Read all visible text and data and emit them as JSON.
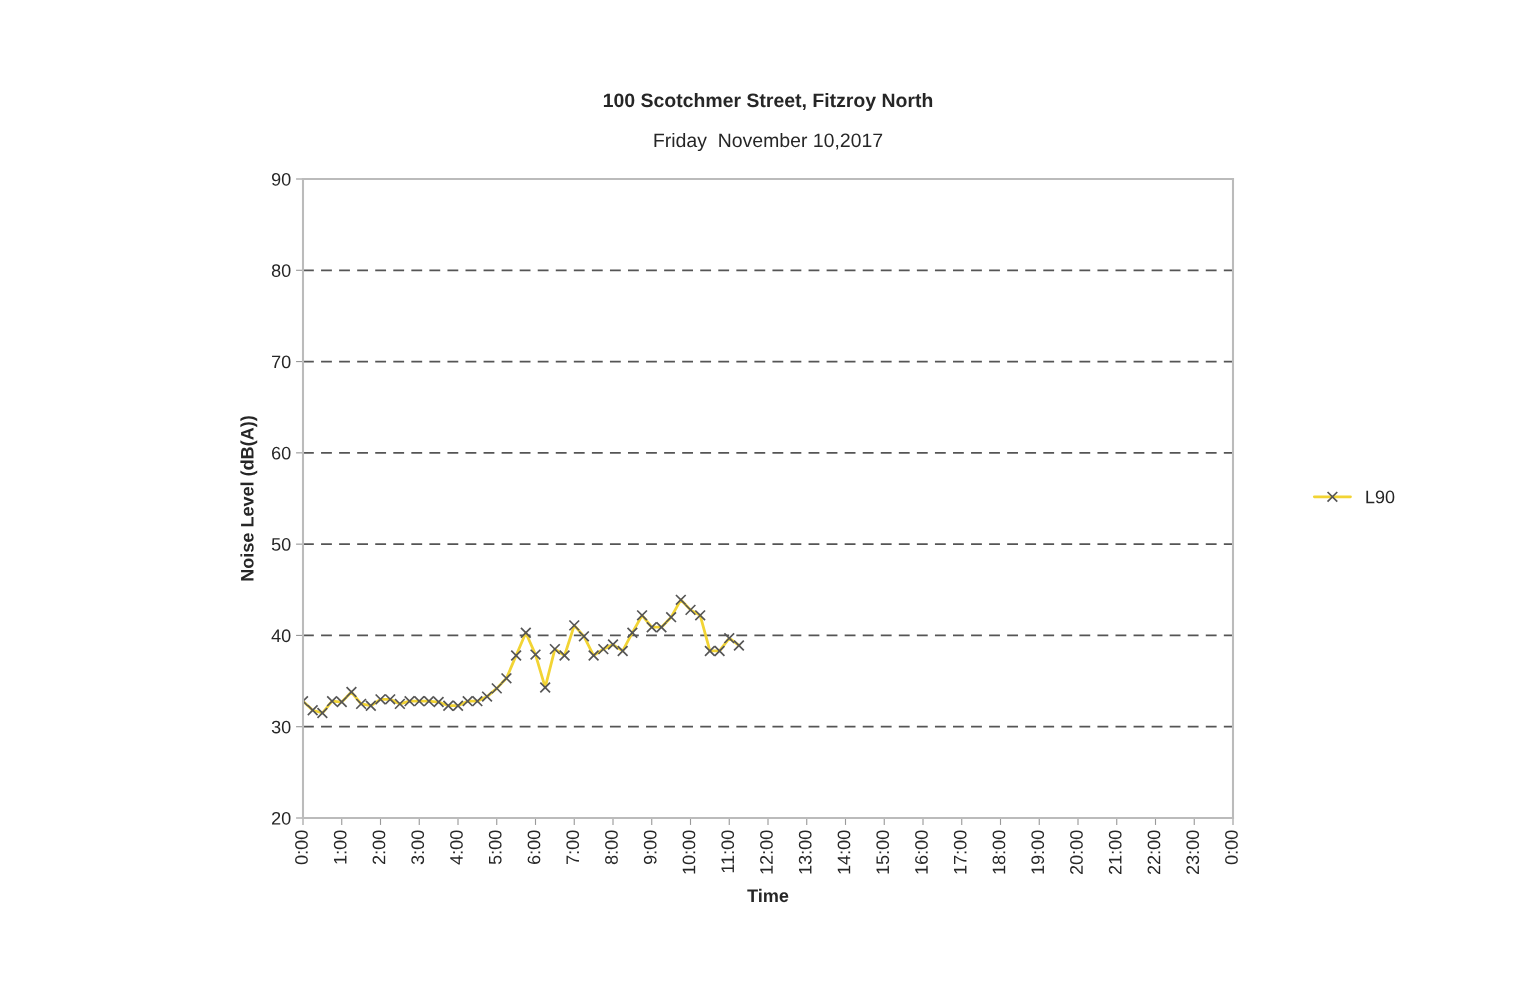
{
  "chart_data": {
    "type": "line",
    "title": "100 Scotchmer Street, Fitzroy North",
    "subtitle": "Friday  November 10,2017",
    "xlabel": "Time",
    "ylabel": "Noise Level (dB(A))",
    "x": [
      0,
      0.25,
      0.5,
      0.75,
      1,
      1.25,
      1.5,
      1.75,
      2,
      2.25,
      2.5,
      2.75,
      3,
      3.25,
      3.5,
      3.75,
      4,
      4.25,
      4.5,
      4.75,
      5,
      5.25,
      5.5,
      5.75,
      6,
      6.25,
      6.5,
      6.75,
      7,
      7.25,
      7.5,
      7.75,
      8,
      8.25,
      8.5,
      8.75,
      9,
      9.25,
      9.5,
      9.75,
      10,
      10.25,
      10.5,
      10.75,
      11,
      11.25
    ],
    "series": [
      {
        "name": "L90",
        "color": "#f2d434",
        "values": [
          32.8,
          31.8,
          31.5,
          32.8,
          32.7,
          33.8,
          32.5,
          32.3,
          33.0,
          33.0,
          32.5,
          32.8,
          32.8,
          32.8,
          32.7,
          32.3,
          32.3,
          32.8,
          32.8,
          33.3,
          34.2,
          35.3,
          37.8,
          40.3,
          37.9,
          34.3,
          38.5,
          37.8,
          41.1,
          39.9,
          37.8,
          38.5,
          39.0,
          38.3,
          40.3,
          42.2,
          40.9,
          40.9,
          42.0,
          43.9,
          42.8,
          42.2,
          38.3,
          38.3,
          39.7,
          38.9
        ]
      }
    ],
    "xlim": [
      0,
      24
    ],
    "xticks": [
      {
        "value": 0,
        "label": "0:00"
      },
      {
        "value": 1,
        "label": "1:00"
      },
      {
        "value": 2,
        "label": "2:00"
      },
      {
        "value": 3,
        "label": "3:00"
      },
      {
        "value": 4,
        "label": "4:00"
      },
      {
        "value": 5,
        "label": "5:00"
      },
      {
        "value": 6,
        "label": "6:00"
      },
      {
        "value": 7,
        "label": "7:00"
      },
      {
        "value": 8,
        "label": "8:00"
      },
      {
        "value": 9,
        "label": "9:00"
      },
      {
        "value": 10,
        "label": "10:00"
      },
      {
        "value": 11,
        "label": "11:00"
      },
      {
        "value": 12,
        "label": "12:00"
      },
      {
        "value": 13,
        "label": "13:00"
      },
      {
        "value": 14,
        "label": "14:00"
      },
      {
        "value": 15,
        "label": "15:00"
      },
      {
        "value": 16,
        "label": "16:00"
      },
      {
        "value": 17,
        "label": "17:00"
      },
      {
        "value": 18,
        "label": "18:00"
      },
      {
        "value": 19,
        "label": "19:00"
      },
      {
        "value": 20,
        "label": "20:00"
      },
      {
        "value": 21,
        "label": "21:00"
      },
      {
        "value": 22,
        "label": "22:00"
      },
      {
        "value": 23,
        "label": "23:00"
      },
      {
        "value": 24,
        "label": "0:00"
      }
    ],
    "ylim": [
      20,
      90
    ],
    "yticks": [
      20,
      30,
      40,
      50,
      60,
      70,
      80,
      90
    ],
    "grid": "y",
    "legend": "right",
    "marker": "cross",
    "line_style": "solid"
  }
}
